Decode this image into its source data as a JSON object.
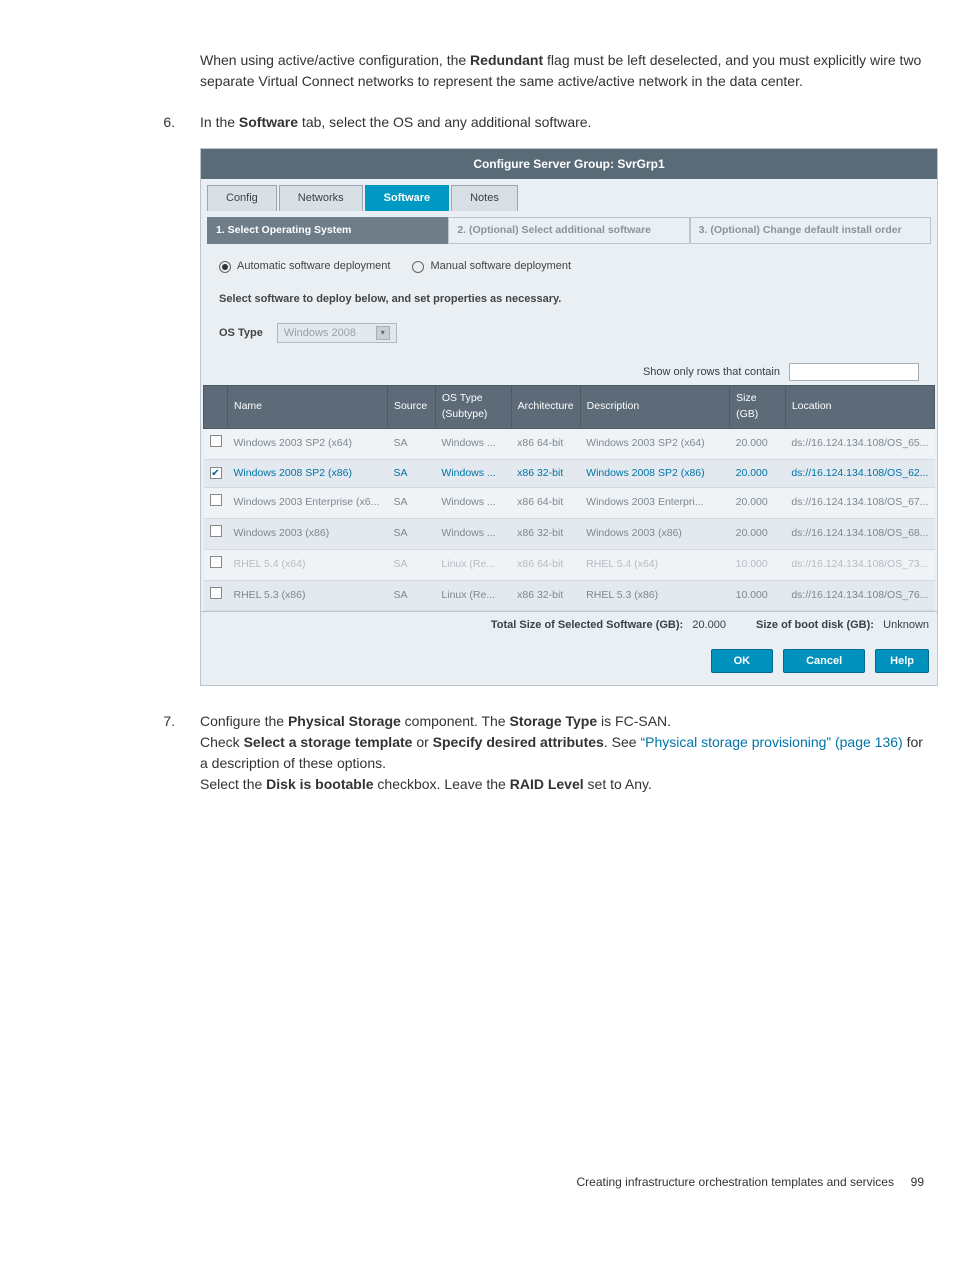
{
  "intro_paragraph": "When using active/active configuration, the Redundant flag must be left deselected, and you must explicitly wire two separate Virtual Connect networks to represent the same active/active network in the data center.",
  "step6": {
    "num": "6.",
    "prefix": "In the ",
    "bold1": "Software",
    "suffix": " tab, select the OS and any additional software."
  },
  "dialog": {
    "title": "Configure Server Group: SvrGrp1",
    "tabs": [
      "Config",
      "Networks",
      "Software",
      "Notes"
    ],
    "active_tab_index": 2,
    "steps": [
      "1. Select Operating System",
      "2. (Optional) Select additional software",
      "3. (Optional) Change default install order"
    ],
    "active_step_index": 0,
    "radio": {
      "auto": "Automatic software deployment",
      "manual": "Manual software deployment"
    },
    "instruction": "Select software to deploy below, and set properties as necessary.",
    "ostype_label": "OS Type",
    "ostype_value": "Windows 2008",
    "filter_label": "Show only rows that contain",
    "columns": [
      "",
      "Name",
      "Source",
      "OS Type (Subtype)",
      "Architecture",
      "Description",
      "Size (GB)",
      "Location"
    ],
    "rows": [
      {
        "checked": false,
        "enabled": true,
        "name": "Windows 2003 SP2 (x64)",
        "source": "SA",
        "ostype": "Windows ...",
        "arch": "x86 64-bit",
        "desc": "Windows 2003 SP2 (x64)",
        "size": "20.000",
        "loc": "ds://16.124.134.108/OS_65..."
      },
      {
        "checked": true,
        "enabled": true,
        "name": "Windows 2008 SP2 (x86)",
        "source": "SA",
        "ostype": "Windows ...",
        "arch": "x86 32-bit",
        "desc": "Windows 2008 SP2 (x86)",
        "size": "20.000",
        "loc": "ds://16.124.134.108/OS_62..."
      },
      {
        "checked": false,
        "enabled": true,
        "name": "Windows 2003 Enterprise (x6...",
        "source": "SA",
        "ostype": "Windows ...",
        "arch": "x86 64-bit",
        "desc": "Windows 2003 Enterpri...",
        "size": "20.000",
        "loc": "ds://16.124.134.108/OS_67..."
      },
      {
        "checked": false,
        "enabled": true,
        "name": "Windows 2003 (x86)",
        "source": "SA",
        "ostype": "Windows ...",
        "arch": "x86 32-bit",
        "desc": "Windows 2003 (x86)",
        "size": "20.000",
        "loc": "ds://16.124.134.108/OS_68..."
      },
      {
        "checked": false,
        "enabled": false,
        "name": "RHEL 5.4 (x64)",
        "source": "SA",
        "ostype": "Linux (Re...",
        "arch": "x86 64-bit",
        "desc": "RHEL 5.4 (x64)",
        "size": "10.000",
        "loc": "ds://16.124.134.108/OS_73..."
      },
      {
        "checked": false,
        "enabled": true,
        "name": "RHEL 5.3 (x86)",
        "source": "SA",
        "ostype": "Linux (Re...",
        "arch": "x86 32-bit",
        "desc": "RHEL 5.3 (x86)",
        "size": "10.000",
        "loc": "ds://16.124.134.108/OS_76..."
      }
    ],
    "totals": {
      "left_label": "Total Size of Selected Software (GB):",
      "left_value": "20.000",
      "right_label": "Size of boot disk (GB):",
      "right_value": "Unknown"
    },
    "buttons": {
      "ok": "OK",
      "cancel": "Cancel",
      "help": "Help"
    }
  },
  "step7": {
    "num": "7.",
    "line1_a": "Configure the ",
    "line1_b": "Physical Storage",
    "line1_c": " component. The ",
    "line1_d": "Storage Type",
    "line1_e": " is FC-SAN.",
    "line2_a": "Check ",
    "line2_b": "Select a storage template",
    "line2_c": " or ",
    "line2_d": "Specify desired attributes",
    "line2_e": ". See ",
    "line2_link": "“Physical storage provisioning” (page 136)",
    "line2_f": " for a description of these options.",
    "line3_a": "Select the ",
    "line3_b": "Disk is bootable",
    "line3_c": " checkbox. Leave the ",
    "line3_d": "RAID Level",
    "line3_e": " set to Any."
  },
  "footer": {
    "text": "Creating infrastructure orchestration templates and services",
    "page": "99"
  },
  "colors": {
    "dialog_header": "#5a6b78",
    "tab_active": "#0099c4",
    "step_active": "#6f7d89",
    "table_header": "#5c6b77",
    "button": "#0091bd",
    "link": "#0073a8"
  }
}
